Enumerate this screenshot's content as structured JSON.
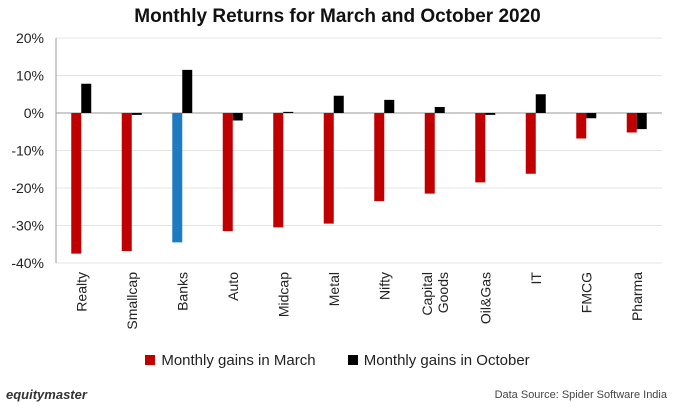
{
  "chart_data": {
    "type": "bar",
    "title": "Monthly Returns for March and October 2020",
    "categories": [
      "Realty",
      "Smallcap",
      "Banks",
      "Auto",
      "Midcap",
      "Metal",
      "Nifty",
      "Capital Goods",
      "Oil&Gas",
      "IT",
      "FMCG",
      "Pharma"
    ],
    "series": [
      {
        "name": "Monthly gains in March",
        "values": [
          -37.5,
          -36.8,
          -34.5,
          -31.5,
          -30.5,
          -29.5,
          -23.5,
          -21.5,
          -18.5,
          -16.2,
          -6.8,
          -5.2
        ],
        "color": "#c00000"
      },
      {
        "name": "Monthly gains in October",
        "values": [
          7.8,
          -0.5,
          11.5,
          -2.0,
          0.3,
          4.6,
          3.5,
          1.6,
          -0.5,
          5.0,
          -1.4,
          -4.3
        ],
        "color": "#000000"
      }
    ],
    "highlight": {
      "category": "Banks",
      "series": "Monthly gains in March",
      "color": "#1f7bc1"
    },
    "ylim": [
      -40,
      20
    ],
    "yticks": [
      20,
      10,
      0,
      -10,
      -20,
      -30,
      -40
    ],
    "ytick_labels": [
      "20%",
      "10%",
      "0%",
      "-10%",
      "-20%",
      "-30%",
      "-40%"
    ],
    "grid": true,
    "legend_position": "bottom"
  },
  "footer": {
    "brand": "equitymaster",
    "source": "Data Source: Spider Software India"
  }
}
